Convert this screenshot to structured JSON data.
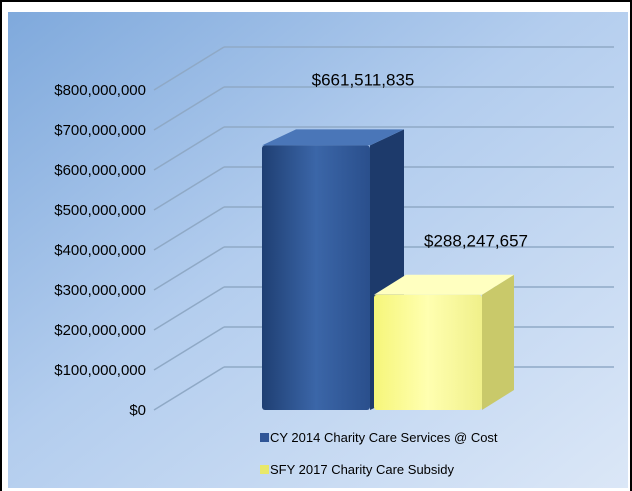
{
  "chart_data": {
    "type": "bar",
    "title": "",
    "xlabel": "",
    "ylabel": "",
    "ylim": [
      0,
      800000000
    ],
    "y_ticks": [
      "$0",
      "$100,000,000",
      "$200,000,000",
      "$300,000,000",
      "$400,000,000",
      "$500,000,000",
      "$600,000,000",
      "$700,000,000",
      "$800,000,000"
    ],
    "grid": true,
    "legend_position": "bottom",
    "series": [
      {
        "name": "CY 2014 Charity Care Services @ Cost",
        "values": [
          661511835
        ],
        "label": "$661,511,835",
        "color": "#2f5597"
      },
      {
        "name": "SFY 2017 Charity Care Subsidy",
        "values": [
          288247657
        ],
        "label": "$288,247,657",
        "color": "#ffff99"
      }
    ]
  }
}
